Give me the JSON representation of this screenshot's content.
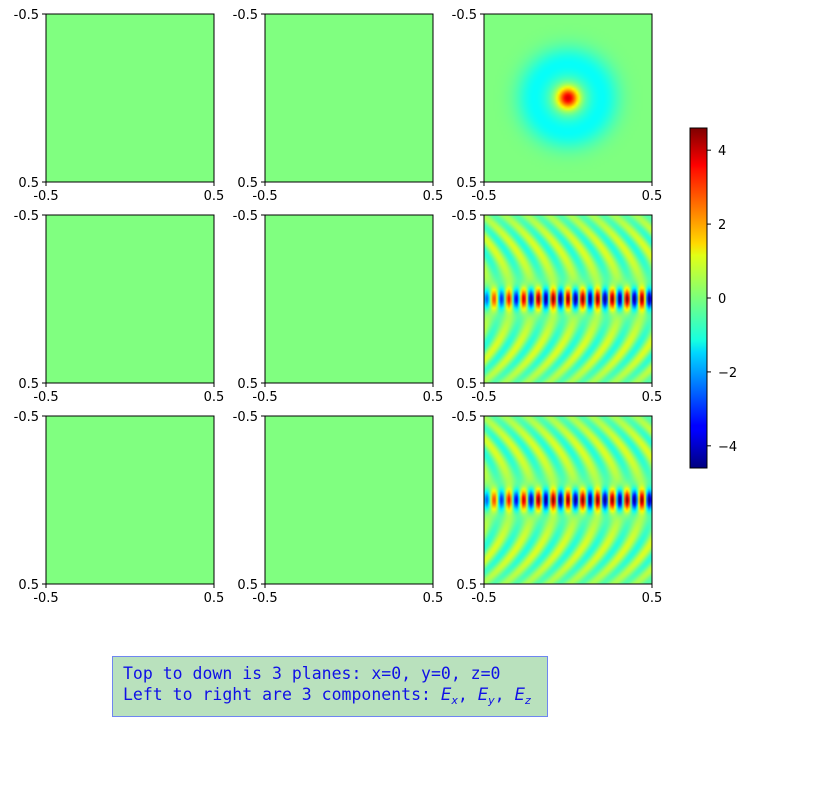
{
  "chart_data": {
    "type": "heatmap",
    "layout": {
      "rows": 3,
      "cols": 3
    },
    "rows": [
      "x=0",
      "y=0",
      "z=0"
    ],
    "columns": [
      "Ex",
      "Ey",
      "Ez"
    ],
    "axes": {
      "x_ticks": [
        "-0.5",
        "0.5"
      ],
      "y_ticks": [
        "-0.5",
        "0.5"
      ],
      "xlim": [
        -0.5,
        0.5
      ],
      "ylim": [
        -0.5,
        0.5
      ]
    },
    "colormap": "jet",
    "vmin": -4.6,
    "vmax": 4.6,
    "colorbar": {
      "ticks": [
        "4",
        "2",
        "0",
        "−2",
        "−4"
      ],
      "tick_values": [
        4,
        2,
        0,
        -2,
        -4
      ]
    },
    "panels": [
      {
        "plane": "x=0",
        "component": "Ex",
        "pattern": "uniform",
        "value": 0
      },
      {
        "plane": "x=0",
        "component": "Ey",
        "pattern": "uniform",
        "value": 0
      },
      {
        "plane": "x=0",
        "component": "Ez",
        "pattern": "ring",
        "peak": 3.8
      },
      {
        "plane": "y=0",
        "component": "Ex",
        "pattern": "uniform",
        "value": 0
      },
      {
        "plane": "y=0",
        "component": "Ey",
        "pattern": "uniform",
        "value": 0
      },
      {
        "plane": "y=0",
        "component": "Ez",
        "pattern": "wave",
        "peak": 4.6
      },
      {
        "plane": "z=0",
        "component": "Ex",
        "pattern": "uniform",
        "value": 0
      },
      {
        "plane": "z=0",
        "component": "Ey",
        "pattern": "uniform",
        "value": 0
      },
      {
        "plane": "z=0",
        "component": "Ez",
        "pattern": "wave",
        "peak": 4.6
      }
    ]
  },
  "annotation": {
    "line1": "Top to down is 3 planes: x=0, y=0, z=0",
    "line2_prefix": "Left to right are 3 components: ",
    "comp_x": "E",
    "sub_x": "x",
    "comp_y": "E",
    "sub_y": "y",
    "comp_z": "E",
    "sub_z": "z",
    "separator": ", "
  }
}
